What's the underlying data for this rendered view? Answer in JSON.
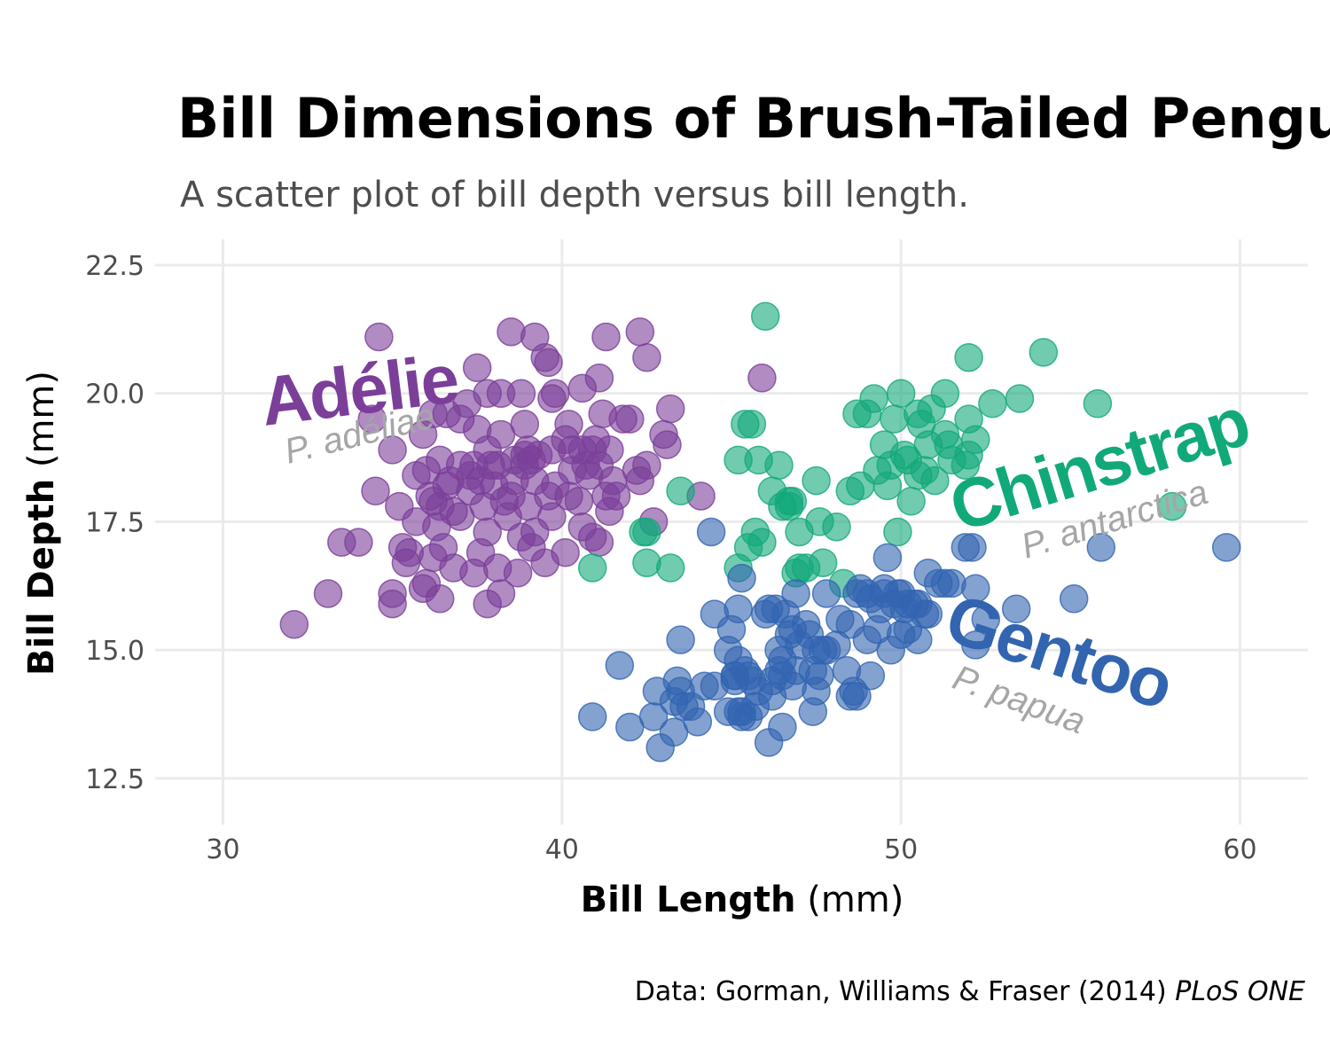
{
  "colors": {
    "adelie": "#7b3f99",
    "chinstrap": "#12a97a",
    "gentoo": "#3264b0",
    "grid": "#ebebeb",
    "muted": "#a6a6a6"
  },
  "chart_data": {
    "type": "scatter",
    "title": "Bill Dimensions of Brush-Tailed Penguins",
    "subtitle": "A scatter plot of bill depth versus bill length.",
    "xlabel": {
      "bold": "Bill Length",
      "unit": " (mm)"
    },
    "ylabel": {
      "bold": "Bill Depth",
      "unit": " (mm)"
    },
    "caption": {
      "text": "Data: Gorman, Williams & Fraser (2014) ",
      "italic": "PLoS ONE"
    },
    "xlim": [
      28,
      62
    ],
    "ylim": [
      11.6,
      23
    ],
    "x_ticks": [
      30,
      40,
      50,
      60
    ],
    "y_ticks": [
      12.5,
      15.0,
      17.5,
      20.0,
      22.5
    ],
    "grid": true,
    "legend": "none",
    "series": [
      {
        "name": "Adélie",
        "latin": "P. adéliae",
        "color_key": "adelie",
        "points": [
          [
            34.6,
            21.1
          ],
          [
            38.5,
            21.2
          ],
          [
            39.2,
            21.1
          ],
          [
            41.3,
            21.1
          ],
          [
            42.3,
            21.2
          ],
          [
            39.5,
            20.7
          ],
          [
            42.5,
            20.7
          ],
          [
            39.6,
            20.6
          ],
          [
            37.5,
            20.5
          ],
          [
            45.9,
            20.3
          ],
          [
            41.1,
            20.3
          ],
          [
            40.6,
            20.1
          ],
          [
            37.8,
            20.0
          ],
          [
            38.2,
            20.0
          ],
          [
            39.8,
            20.0
          ],
          [
            38.8,
            20.0
          ],
          [
            37.2,
            19.8
          ],
          [
            43.2,
            19.7
          ],
          [
            36.2,
            19.6
          ],
          [
            41.8,
            19.5
          ],
          [
            42.0,
            19.5
          ],
          [
            37.0,
            19.5
          ],
          [
            34.4,
            19.5
          ],
          [
            40.2,
            19.4
          ],
          [
            35.9,
            19.2
          ],
          [
            38.2,
            19.2
          ],
          [
            43.1,
            19.0
          ],
          [
            37.8,
            18.9
          ],
          [
            35.0,
            18.9
          ],
          [
            41.4,
            18.9
          ],
          [
            40.6,
            18.9
          ],
          [
            39.0,
            18.9
          ],
          [
            38.6,
            18.7
          ],
          [
            40.9,
            18.9
          ],
          [
            36.4,
            18.7
          ],
          [
            39.7,
            18.9
          ],
          [
            38.9,
            18.8
          ],
          [
            40.7,
            18.6
          ],
          [
            42.2,
            18.5
          ],
          [
            37.3,
            18.4
          ],
          [
            37.6,
            18.3
          ],
          [
            36.6,
            18.2
          ],
          [
            39.3,
            18.8
          ],
          [
            41.1,
            18.6
          ],
          [
            37.9,
            18.6
          ],
          [
            38.1,
            18.6
          ],
          [
            36.0,
            18.5
          ],
          [
            40.3,
            18.5
          ],
          [
            35.7,
            18.4
          ],
          [
            39.1,
            18.7
          ],
          [
            42.3,
            18.3
          ],
          [
            37.4,
            18.6
          ],
          [
            40.8,
            18.4
          ],
          [
            41.5,
            18.3
          ],
          [
            38.6,
            18.3
          ],
          [
            36.7,
            18.3
          ],
          [
            38.0,
            18.2
          ],
          [
            39.8,
            18.2
          ],
          [
            41.3,
            18.0
          ],
          [
            37.3,
            18.1
          ],
          [
            34.5,
            18.1
          ],
          [
            40.2,
            18.0
          ],
          [
            36.2,
            17.9
          ],
          [
            39.6,
            18.0
          ],
          [
            38.3,
            17.9
          ],
          [
            35.2,
            17.8
          ],
          [
            36.4,
            17.8
          ],
          [
            37.7,
            17.8
          ],
          [
            39.0,
            17.8
          ],
          [
            40.5,
            17.9
          ],
          [
            41.4,
            17.7
          ],
          [
            36.8,
            17.7
          ],
          [
            38.4,
            17.6
          ],
          [
            39.7,
            17.6
          ],
          [
            37.0,
            17.6
          ],
          [
            35.7,
            17.5
          ],
          [
            42.7,
            17.5
          ],
          [
            36.3,
            17.4
          ],
          [
            40.6,
            17.4
          ],
          [
            39.2,
            17.3
          ],
          [
            37.8,
            17.3
          ],
          [
            38.8,
            17.2
          ],
          [
            40.9,
            17.2
          ],
          [
            41.1,
            17.1
          ],
          [
            36.5,
            17.0
          ],
          [
            35.3,
            17.0
          ],
          [
            39.1,
            17.0
          ],
          [
            33.5,
            17.1
          ],
          [
            34.0,
            17.1
          ],
          [
            35.5,
            16.9
          ],
          [
            37.6,
            16.9
          ],
          [
            36.2,
            16.8
          ],
          [
            40.1,
            16.9
          ],
          [
            38.1,
            16.6
          ],
          [
            36.8,
            16.6
          ],
          [
            39.5,
            16.7
          ],
          [
            35.4,
            16.7
          ],
          [
            37.4,
            16.5
          ],
          [
            38.7,
            16.5
          ],
          [
            36.0,
            16.3
          ],
          [
            35.9,
            16.2
          ],
          [
            35.0,
            16.1
          ],
          [
            38.2,
            16.1
          ],
          [
            36.4,
            16.0
          ],
          [
            35.0,
            15.9
          ],
          [
            37.8,
            15.9
          ],
          [
            33.1,
            16.1
          ],
          [
            32.1,
            15.5
          ],
          [
            36.1,
            18.0
          ],
          [
            39.2,
            18.3
          ],
          [
            41.6,
            18.0
          ],
          [
            38.9,
            19.4
          ],
          [
            41.2,
            19.6
          ],
          [
            40.1,
            19.1
          ],
          [
            42.5,
            18.6
          ],
          [
            37.5,
            19.3
          ],
          [
            39.7,
            19.9
          ],
          [
            43.0,
            19.2
          ],
          [
            36.6,
            19.6
          ],
          [
            38.5,
            18.0
          ],
          [
            41.0,
            19.1
          ],
          [
            40.3,
            18.9
          ],
          [
            37.0,
            18.6
          ],
          [
            44.1,
            18.0
          ],
          [
            38.9,
            18.6
          ]
        ]
      },
      {
        "name": "Chinstrap",
        "latin": "P. antarctica",
        "color_key": "chinstrap",
        "points": [
          [
            54.2,
            20.8
          ],
          [
            52.0,
            20.7
          ],
          [
            46.0,
            21.5
          ],
          [
            51.3,
            20.0
          ],
          [
            52.7,
            19.8
          ],
          [
            53.5,
            19.9
          ],
          [
            50.0,
            20.0
          ],
          [
            49.2,
            19.9
          ],
          [
            55.8,
            19.8
          ],
          [
            50.5,
            19.6
          ],
          [
            52.0,
            19.5
          ],
          [
            48.7,
            19.6
          ],
          [
            50.9,
            19.7
          ],
          [
            45.4,
            19.4
          ],
          [
            49.8,
            19.5
          ],
          [
            51.3,
            19.2
          ],
          [
            52.2,
            19.1
          ],
          [
            50.8,
            19.0
          ],
          [
            49.0,
            19.6
          ],
          [
            51.5,
            18.7
          ],
          [
            49.5,
            19.0
          ],
          [
            50.6,
            19.4
          ],
          [
            51.4,
            19.0
          ],
          [
            46.4,
            18.6
          ],
          [
            52.0,
            18.8
          ],
          [
            50.1,
            18.8
          ],
          [
            49.3,
            18.5
          ],
          [
            50.5,
            18.4
          ],
          [
            49.7,
            18.6
          ],
          [
            51.9,
            18.6
          ],
          [
            48.5,
            18.1
          ],
          [
            50.2,
            18.7
          ],
          [
            51.0,
            18.3
          ],
          [
            47.5,
            18.3
          ],
          [
            45.2,
            18.7
          ],
          [
            49.6,
            18.2
          ],
          [
            50.7,
            18.5
          ],
          [
            46.7,
            17.9
          ],
          [
            46.2,
            18.1
          ],
          [
            50.3,
            17.9
          ],
          [
            48.8,
            18.2
          ],
          [
            47.0,
            17.3
          ],
          [
            46.5,
            17.8
          ],
          [
            45.7,
            17.3
          ],
          [
            45.5,
            17.0
          ],
          [
            49.9,
            17.3
          ],
          [
            45.9,
            17.1
          ],
          [
            47.6,
            17.5
          ],
          [
            48.1,
            17.4
          ],
          [
            43.5,
            18.1
          ],
          [
            42.5,
            17.3
          ],
          [
            42.4,
            17.3
          ],
          [
            42.5,
            16.7
          ],
          [
            43.2,
            16.6
          ],
          [
            45.2,
            16.6
          ],
          [
            46.9,
            16.5
          ],
          [
            47.7,
            16.7
          ],
          [
            47.0,
            16.6
          ],
          [
            40.9,
            16.6
          ],
          [
            58.0,
            17.8
          ],
          [
            45.6,
            19.4
          ],
          [
            46.8,
            17.9
          ],
          [
            48.3,
            16.3
          ],
          [
            45.8,
            18.7
          ],
          [
            47.2,
            16.6
          ],
          [
            46.7,
            17.8
          ]
        ]
      },
      {
        "name": "Gentoo",
        "latin": "P. papua",
        "color_key": "gentoo",
        "points": [
          [
            59.6,
            17.0
          ],
          [
            55.9,
            17.0
          ],
          [
            51.9,
            17.0
          ],
          [
            44.4,
            17.3
          ],
          [
            49.6,
            16.8
          ],
          [
            45.3,
            16.4
          ],
          [
            50.8,
            16.5
          ],
          [
            51.3,
            16.3
          ],
          [
            52.2,
            16.2
          ],
          [
            55.1,
            16.0
          ],
          [
            50.4,
            15.9
          ],
          [
            49.1,
            16.0
          ],
          [
            49.5,
            16.1
          ],
          [
            48.7,
            16.1
          ],
          [
            50.0,
            16.1
          ],
          [
            53.4,
            15.8
          ],
          [
            49.8,
            15.9
          ],
          [
            50.5,
            15.9
          ],
          [
            48.5,
            15.5
          ],
          [
            47.5,
            15.0
          ],
          [
            46.1,
            15.8
          ],
          [
            50.1,
            15.8
          ],
          [
            47.3,
            15.3
          ],
          [
            52.5,
            15.6
          ],
          [
            46.6,
            15.7
          ],
          [
            45.2,
            15.8
          ],
          [
            48.2,
            15.6
          ],
          [
            50.7,
            15.7
          ],
          [
            46.8,
            15.4
          ],
          [
            49.0,
            15.2
          ],
          [
            50.2,
            15.4
          ],
          [
            47.0,
            15.1
          ],
          [
            45.1,
            14.5
          ],
          [
            44.9,
            15.0
          ],
          [
            46.4,
            15.0
          ],
          [
            48.4,
            14.6
          ],
          [
            49.3,
            15.4
          ],
          [
            47.8,
            15.0
          ],
          [
            48.7,
            14.1
          ],
          [
            45.5,
            14.5
          ],
          [
            46.5,
            14.5
          ],
          [
            48.6,
            14.2
          ],
          [
            47.4,
            14.6
          ],
          [
            45.3,
            13.8
          ],
          [
            43.5,
            14.2
          ],
          [
            46.2,
            14.4
          ],
          [
            45.5,
            13.7
          ],
          [
            45.4,
            14.6
          ],
          [
            47.6,
            14.5
          ],
          [
            45.8,
            14.2
          ],
          [
            49.4,
            15.8
          ],
          [
            46.9,
            14.6
          ],
          [
            43.3,
            14.0
          ],
          [
            42.0,
            13.5
          ],
          [
            46.1,
            13.2
          ],
          [
            43.4,
            14.4
          ],
          [
            42.7,
            13.7
          ],
          [
            43.6,
            13.9
          ],
          [
            46.3,
            15.8
          ],
          [
            44.5,
            15.7
          ],
          [
            43.8,
            13.9
          ],
          [
            43.5,
            15.2
          ],
          [
            42.8,
            14.2
          ],
          [
            49.5,
            16.2
          ],
          [
            40.9,
            13.7
          ],
          [
            42.9,
            13.1
          ],
          [
            44.0,
            13.6
          ],
          [
            48.1,
            15.1
          ],
          [
            46.5,
            13.5
          ],
          [
            44.5,
            14.3
          ],
          [
            45.1,
            14.4
          ],
          [
            46.4,
            14.6
          ],
          [
            47.4,
            13.8
          ],
          [
            50.8,
            15.7
          ],
          [
            47.7,
            15.0
          ],
          [
            52.1,
            17.0
          ],
          [
            50.0,
            15.3
          ],
          [
            46.8,
            14.3
          ],
          [
            48.8,
            16.2
          ],
          [
            45.1,
            14.5
          ],
          [
            41.7,
            14.7
          ],
          [
            46.9,
            16.1
          ],
          [
            49.1,
            14.5
          ],
          [
            45.7,
            13.9
          ],
          [
            50.2,
            15.9
          ],
          [
            43.3,
            13.4
          ],
          [
            45.6,
            14.4
          ],
          [
            46.0,
            15.7
          ],
          [
            44.9,
            13.8
          ],
          [
            45.0,
            15.4
          ],
          [
            49.9,
            16.1
          ],
          [
            47.5,
            14.2
          ],
          [
            48.5,
            14.1
          ],
          [
            50.5,
            15.2
          ],
          [
            45.2,
            14.8
          ],
          [
            51.1,
            16.3
          ],
          [
            49.0,
            16.1
          ],
          [
            46.2,
            14.1
          ],
          [
            45.3,
            13.7
          ],
          [
            51.5,
            16.3
          ],
          [
            47.2,
            15.5
          ],
          [
            52.2,
            15.1
          ],
          [
            46.7,
            15.3
          ],
          [
            49.7,
            15.0
          ],
          [
            46.5,
            14.8
          ],
          [
            45.2,
            13.8
          ],
          [
            47.8,
            16.1
          ],
          [
            44.2,
            14.3
          ]
        ]
      }
    ],
    "annotations": [
      {
        "label": "Adélie",
        "latin": "P. adéliae",
        "series": "Adélie"
      },
      {
        "label": "Chinstrap",
        "latin": "P. antarctica",
        "series": "Chinstrap"
      },
      {
        "label": "Gentoo",
        "latin": "P. papua",
        "series": "Gentoo"
      }
    ]
  }
}
